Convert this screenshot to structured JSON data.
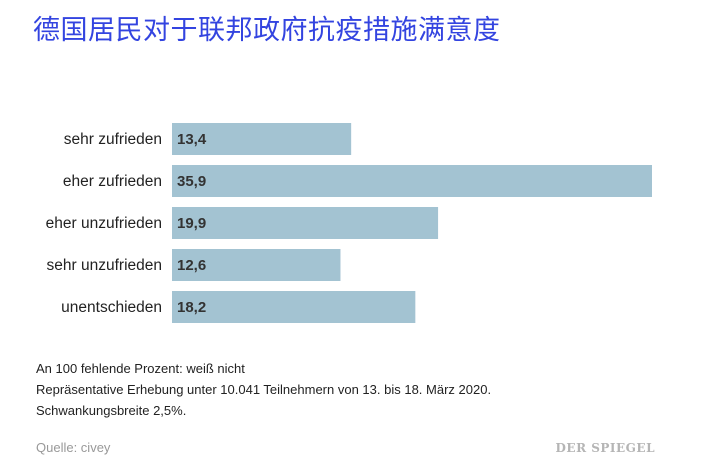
{
  "title": "德国居民对于联邦政府抗疫措施满意度",
  "notes": [
    "An 100 fehlende Prozent: weiß nicht",
    "Repräsentative Erhebung unter 10.041 Teilnehmern von 13. bis 18. März 2020.",
    "Schwankungsbreite 2,5%."
  ],
  "source": "Quelle: civey",
  "brand": "DER SPIEGEL",
  "colors": {
    "bar": "#a3c3d2",
    "title": "#3344e0"
  },
  "chart_data": {
    "type": "bar",
    "orientation": "horizontal",
    "categories": [
      "sehr zufrieden",
      "eher zufrieden",
      "eher unzufrieden",
      "sehr unzufrieden",
      "unentschieden"
    ],
    "values": [
      13.4,
      35.9,
      19.9,
      12.6,
      18.2
    ],
    "value_labels": [
      "13,4",
      "35,9",
      "19,9",
      "12,6",
      "18,2"
    ],
    "xlim": [
      0,
      35.9
    ],
    "grid": false,
    "legend": "none"
  }
}
